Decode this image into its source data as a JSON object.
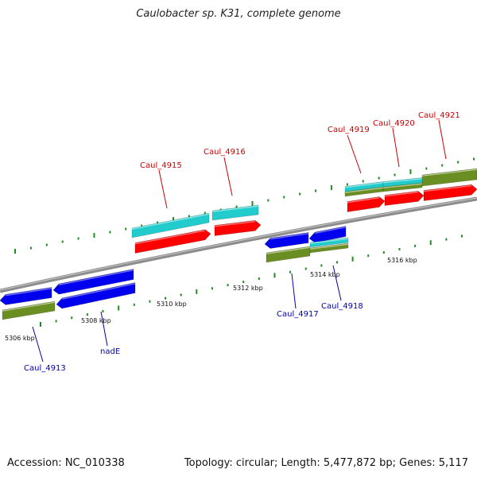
{
  "header": {
    "title": "Caulobacter sp. K31, complete genome"
  },
  "footer": {
    "accession": "Accession: NC_010338",
    "summary": "Topology: circular; Length: 5,477,872 bp; Genes: 5,117"
  },
  "colors": {
    "backbone": "#8c8c8c",
    "cds_plus": "#ff0000",
    "gene_plus": "#22cccc",
    "cds_minus": "#0000ee",
    "gene_minus": "#6b8e23",
    "ticks": "#228b22",
    "label_plus": "#cc0000",
    "label_minus": "#0000aa"
  },
  "scale": {
    "labels": [
      "5306 kbp",
      "5308 kbp",
      "5310 kbp",
      "5312 kbp",
      "5314 kbp",
      "5316 kbp"
    ]
  },
  "genes_plus_strand": [
    {
      "label": "Caul_4915"
    },
    {
      "label": "Caul_4916"
    },
    {
      "label": "Caul_4919"
    },
    {
      "label": "Caul_4920"
    },
    {
      "label": "Caul_4921"
    }
  ],
  "genes_minus_strand": [
    {
      "label": "Caul_4913"
    },
    {
      "label": "nadE"
    },
    {
      "label": "Caul_4917"
    },
    {
      "label": "Caul_4918"
    }
  ]
}
